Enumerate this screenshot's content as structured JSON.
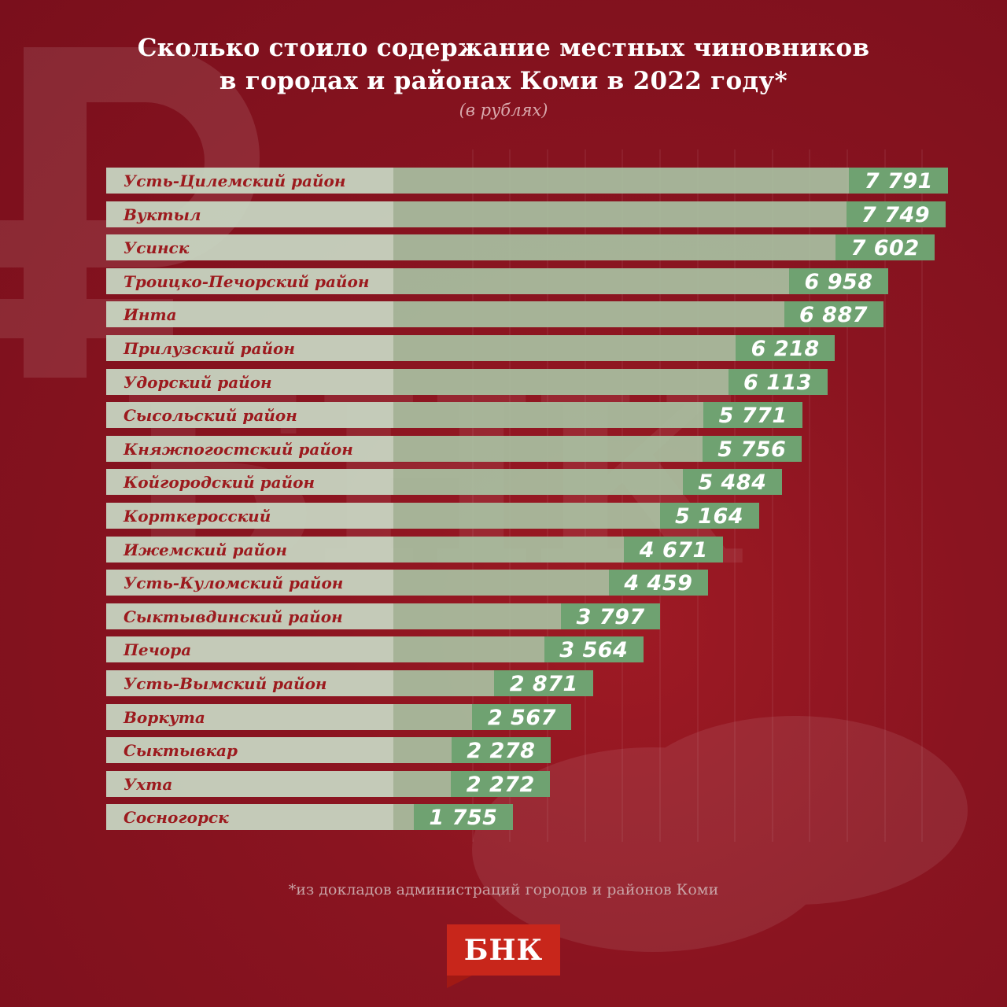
{
  "title": {
    "line1": "Сколько стоило содержание местных чиновников",
    "line2": "в городах и районах Коми в 2022 году*",
    "subtitle": "(в рублях)"
  },
  "footnote": "*из докладов администраций городов и районов Коми",
  "logo": {
    "text": "БНК"
  },
  "colors": {
    "background": "#7a0f1c",
    "label_bg": "#c8d8c4",
    "bar_fill": "#a8c4a4",
    "value_box": "#6fa271",
    "label_text": "#9c1a1e",
    "value_text": "#ffffff",
    "logo_bg": "#c8261b"
  },
  "chart_data": {
    "type": "bar",
    "orientation": "horizontal",
    "title": "Сколько стоило содержание местных чиновников в городах и районах Коми в 2022 году*",
    "subtitle": "(в рублях)",
    "xlabel": "",
    "ylabel": "",
    "unit": "рублей",
    "grid": false,
    "legend": null,
    "categories": [
      "Усть-Цилемский район",
      "Вуктыл",
      "Усинск",
      "Троицко-Печорский район",
      "Инта",
      "Прилузский район",
      "Удорский район",
      "Сысольский район",
      "Княжпогостский район",
      "Койгородский район",
      "Корткеросский",
      "Ижемский район",
      "Усть-Куломский район",
      "Сыктывдинский район",
      "Печора",
      "Усть-Вымский район",
      "Воркута",
      "Сыктывкар",
      "Ухта",
      "Сосногорск"
    ],
    "values": [
      7791,
      7749,
      7602,
      6958,
      6887,
      6218,
      6113,
      5771,
      5756,
      5484,
      5164,
      4671,
      4459,
      3797,
      3564,
      2871,
      2567,
      2278,
      2272,
      1755
    ],
    "value_labels": [
      "7 791",
      "7 749",
      "7 602",
      "6 958",
      "6 887",
      "6 218",
      "6 113",
      "5 771",
      "5 756",
      "5 484",
      "5 164",
      "4 671",
      "4 459",
      "3 797",
      "3 564",
      "2 871",
      "2 567",
      "2 278",
      "2 272",
      "1 755"
    ],
    "footnote": "*из докладов администраций городов и районов Коми"
  }
}
